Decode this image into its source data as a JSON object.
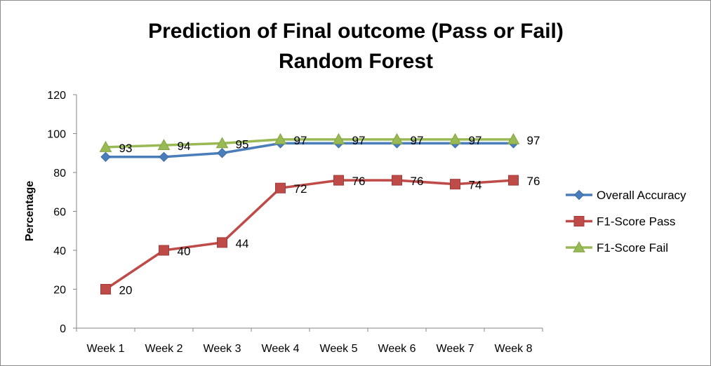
{
  "chart_data": {
    "type": "line",
    "title": "Prediction of Final outcome (Pass or Fail)",
    "subtitle": "Random Forest",
    "xlabel": "",
    "ylabel": "Percentage",
    "ylim": [
      0,
      120
    ],
    "yticks": [
      0,
      20,
      40,
      60,
      80,
      100,
      120
    ],
    "grid": false,
    "legend_position": "right",
    "categories": [
      "Week 1",
      "Week 2",
      "Week 3",
      "Week 4",
      "Week 5",
      "Week 6",
      "Week 7",
      "Week 8"
    ],
    "series": [
      {
        "name": "Overall Accuracy",
        "values": [
          88,
          88,
          90,
          95,
          95,
          95,
          95,
          95
        ],
        "color": "#4a7ebb",
        "marker": "diamond",
        "show_labels": false
      },
      {
        "name": "F1-Score Pass",
        "values": [
          20,
          40,
          44,
          72,
          76,
          76,
          74,
          76
        ],
        "color": "#be4b48",
        "marker": "square",
        "show_labels": true
      },
      {
        "name": "F1-Score Fail",
        "values": [
          93,
          94,
          95,
          97,
          97,
          97,
          97,
          97
        ],
        "color": "#98b954",
        "marker": "triangle",
        "show_labels": true
      }
    ]
  }
}
